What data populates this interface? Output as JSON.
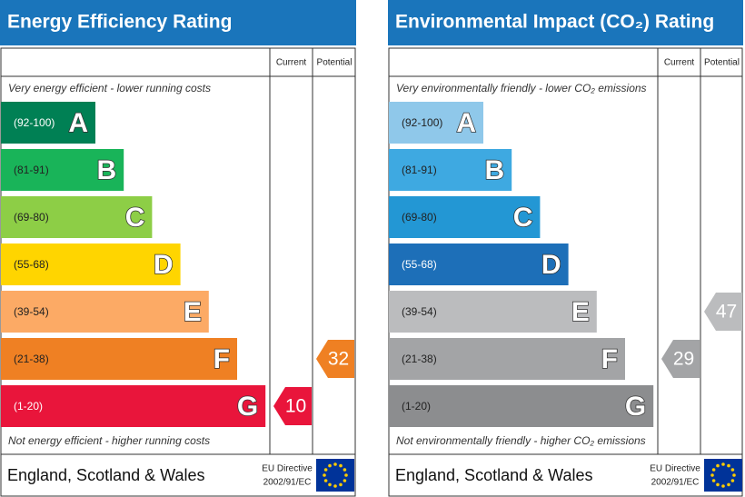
{
  "panels": [
    {
      "title": "Energy Efficiency Rating",
      "col_current": "Current",
      "col_potential": "Potential",
      "top_note": "Very energy efficient - lower running costs",
      "bottom_note": "Not energy efficient - higher running costs",
      "bands": [
        {
          "range": "(92-100)",
          "letter": "A",
          "color": "#008054"
        },
        {
          "range": "(81-91)",
          "letter": "B",
          "color": "#19b459"
        },
        {
          "range": "(69-80)",
          "letter": "C",
          "color": "#8dce46"
        },
        {
          "range": "(55-68)",
          "letter": "D",
          "color": "#ffd500"
        },
        {
          "range": "(39-54)",
          "letter": "E",
          "color": "#fcaa65"
        },
        {
          "range": "(21-38)",
          "letter": "F",
          "color": "#ef8023"
        },
        {
          "range": "(1-20)",
          "letter": "G",
          "color": "#e9153b"
        }
      ],
      "current": 10,
      "potential": 32,
      "footer": {
        "region": "England, Scotland & Wales",
        "directive_line1": "EU Directive",
        "directive_line2": "2002/91/EC"
      }
    },
    {
      "title": "Environmental Impact (CO₂) Rating",
      "col_current": "Current",
      "col_potential": "Potential",
      "top_note": "Very environmentally friendly - lower CO₂ emissions",
      "bottom_note": "Not environmentally friendly - higher CO₂ emissions",
      "bands": [
        {
          "range": "(92-100)",
          "letter": "A",
          "color": "#8fc8ea"
        },
        {
          "range": "(81-91)",
          "letter": "B",
          "color": "#3ea9e1"
        },
        {
          "range": "(69-80)",
          "letter": "C",
          "color": "#2397d4"
        },
        {
          "range": "(55-68)",
          "letter": "D",
          "color": "#1d6fb8"
        },
        {
          "range": "(39-54)",
          "letter": "E",
          "color": "#bbbcbe"
        },
        {
          "range": "(21-38)",
          "letter": "F",
          "color": "#a3a4a6"
        },
        {
          "range": "(1-20)",
          "letter": "G",
          "color": "#8c8d8f"
        }
      ],
      "current": 29,
      "potential": 47,
      "footer": {
        "region": "England, Scotland & Wales",
        "directive_line1": "EU Directive",
        "directive_line2": "2002/91/EC"
      }
    }
  ]
}
